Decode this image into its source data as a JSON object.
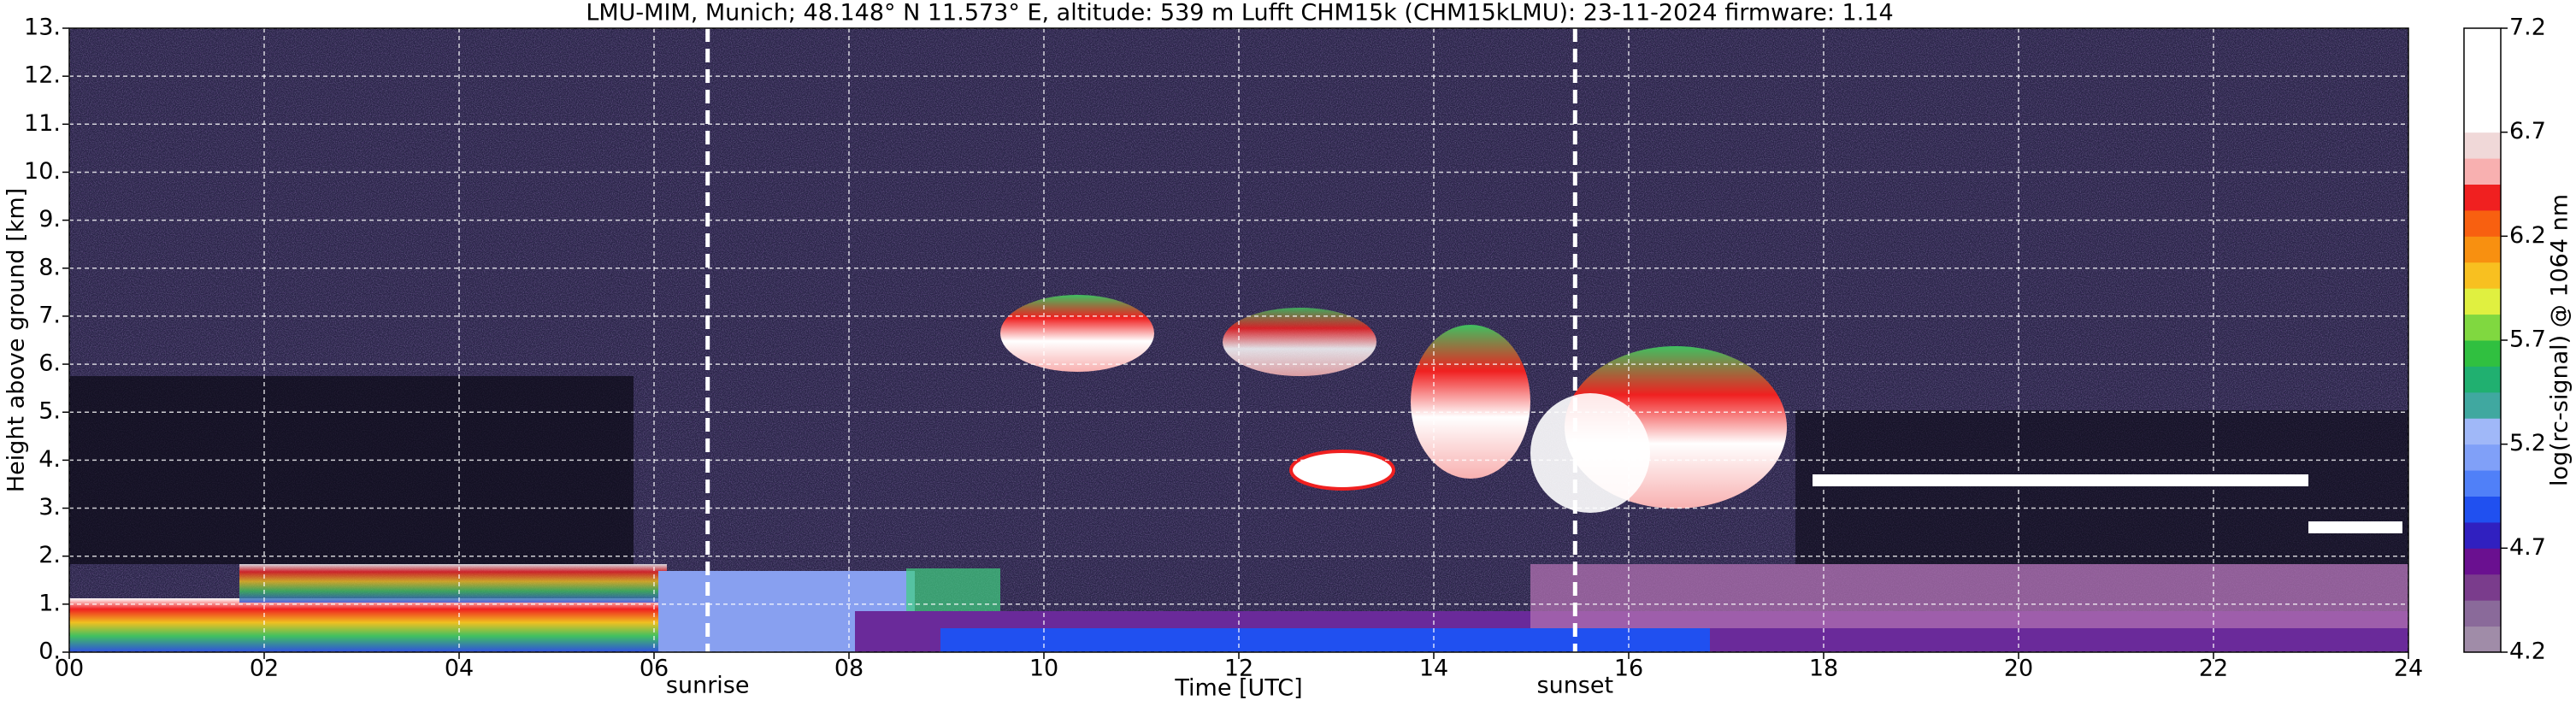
{
  "chart_data": {
    "type": "heatmap",
    "title": "LMU-MIM, Munich; 48.148° N 11.573° E, altitude: 539 m    Lufft CHM15k (CHM15kLMU): 23-11-2024    firmware: 1.14",
    "x_label": "Time [UTC]",
    "y_label": "Height above ground [km]",
    "xlim": [
      0,
      24
    ],
    "xticks": [
      {
        "value": 0,
        "label": "00"
      },
      {
        "value": 2,
        "label": "02"
      },
      {
        "value": 4,
        "label": "04"
      },
      {
        "value": 6,
        "label": "06"
      },
      {
        "value": 8,
        "label": "08"
      },
      10,
      12,
      14,
      16,
      18,
      20,
      22,
      24
    ],
    "ylim": [
      0,
      13
    ],
    "yticks": [
      {
        "value": 0,
        "label": "0."
      },
      {
        "value": 1,
        "label": "1."
      },
      {
        "value": 2,
        "label": "2."
      },
      {
        "value": 3,
        "label": "3."
      },
      {
        "value": 4,
        "label": "4."
      },
      {
        "value": 5,
        "label": "5."
      },
      {
        "value": 6,
        "label": "6."
      },
      {
        "value": 7,
        "label": "7."
      },
      {
        "value": 8,
        "label": "8."
      },
      {
        "value": 9,
        "label": "9."
      },
      {
        "value": 10,
        "label": "10."
      },
      {
        "value": 11,
        "label": "11."
      },
      {
        "value": 12,
        "label": "12."
      },
      {
        "value": 13,
        "label": "13."
      }
    ],
    "grid": true,
    "annotations": [
      {
        "text": "sunrise",
        "x": 6.55
      },
      {
        "text": "sunset",
        "x": 15.45
      }
    ],
    "colorbar": {
      "label": "log(rc-signal) @ 1064 nm",
      "clim": [
        4.2,
        7.2
      ],
      "ticks": [
        4.2,
        4.7,
        5.2,
        5.7,
        6.2,
        6.7,
        7.2
      ],
      "colors": [
        "#a08ca8",
        "#8a6a9a",
        "#7a3c8c",
        "#6a1090",
        "#3020c0",
        "#2050f0",
        "#5080f8",
        "#80a0f8",
        "#a0b8f8",
        "#40a8a0",
        "#20b070",
        "#30c040",
        "#80d840",
        "#e0f040",
        "#f8c020",
        "#f89010",
        "#f86010",
        "#f02020",
        "#f8b0b0",
        "#f0d8d8",
        "#ffffff",
        "#ffffff",
        "#ffffff",
        "#ffffff"
      ]
    }
  }
}
